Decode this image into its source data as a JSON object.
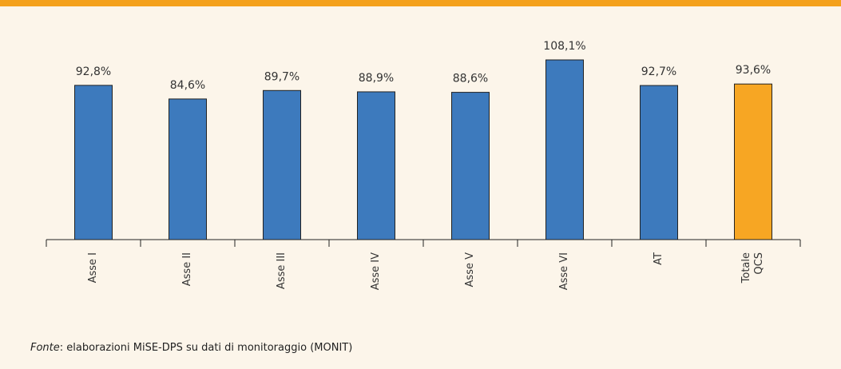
{
  "chart_data": {
    "type": "bar",
    "categories": [
      "Asse I",
      "Asse II",
      "Asse III",
      "Asse IV",
      "Asse V",
      "Asse VI",
      "AT",
      "Totale QCS"
    ],
    "values": [
      92.8,
      84.6,
      89.7,
      88.9,
      88.6,
      108.1,
      92.7,
      93.6
    ],
    "value_labels": [
      "92,8%",
      "84,6%",
      "89,7%",
      "88,9%",
      "88,6%",
      "108,1%",
      "92,7%",
      "93,6%"
    ],
    "colors": [
      "#3d7abd",
      "#3d7abd",
      "#3d7abd",
      "#3d7abd",
      "#3d7abd",
      "#3d7abd",
      "#3d7abd",
      "#f7a623"
    ]
  },
  "source": {
    "label": "Fonte",
    "text": ": elaborazioni MiSE-DPS su dati di monitoraggio (MONIT)"
  }
}
